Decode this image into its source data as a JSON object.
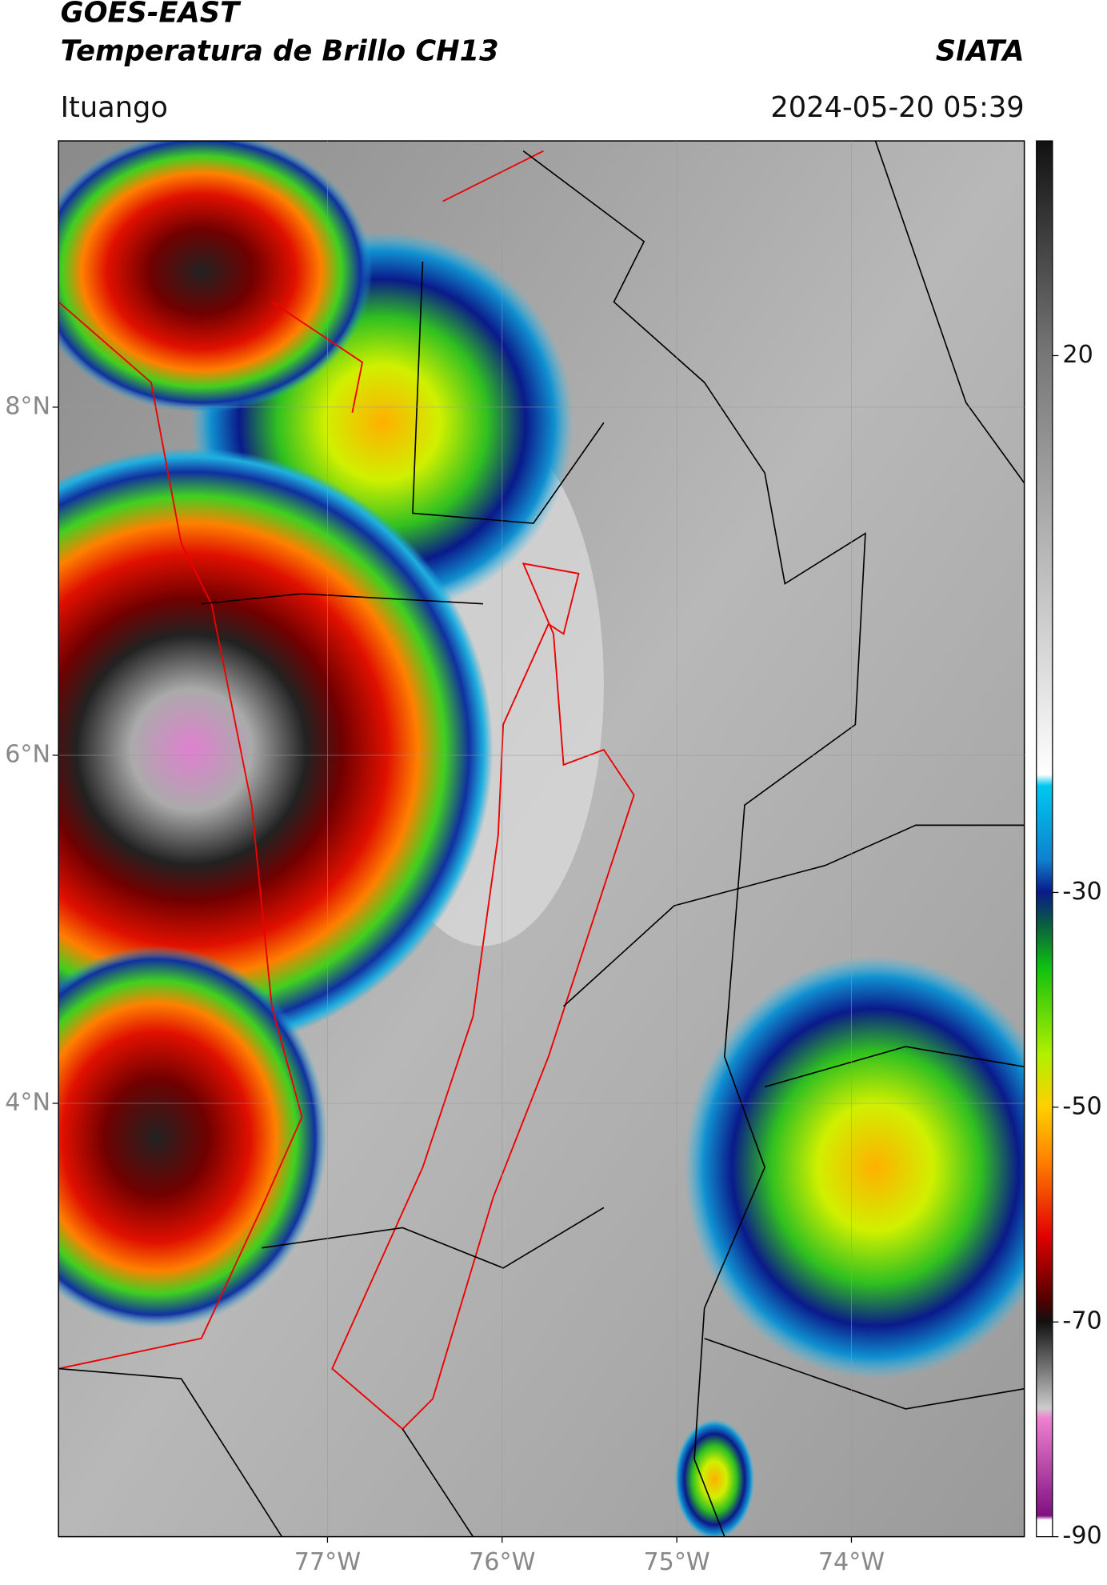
{
  "header": {
    "satellite": "GOES-EAST",
    "product": "Temperatura de Brillo CH13",
    "source": "SIATA",
    "location": "Ituango",
    "datetime": "2024-05-20 05:39"
  },
  "map": {
    "xlim": [
      -78.54,
      -73.01
    ],
    "ylim": [
      1.51,
      9.53
    ],
    "xticks": [
      {
        "value": -77,
        "label": "77°W"
      },
      {
        "value": -76,
        "label": "76°W"
      },
      {
        "value": -75,
        "label": "75°W"
      },
      {
        "value": -74,
        "label": "74°W"
      }
    ],
    "yticks": [
      {
        "value": 8,
        "label": "8°N"
      },
      {
        "value": 6,
        "label": "6°N"
      },
      {
        "value": 4,
        "label": "4°N"
      }
    ],
    "grid": true
  },
  "colorbar": {
    "lim": [
      -90,
      40
    ],
    "ticks": [
      20,
      -30,
      -50,
      -70,
      -90
    ]
  }
}
